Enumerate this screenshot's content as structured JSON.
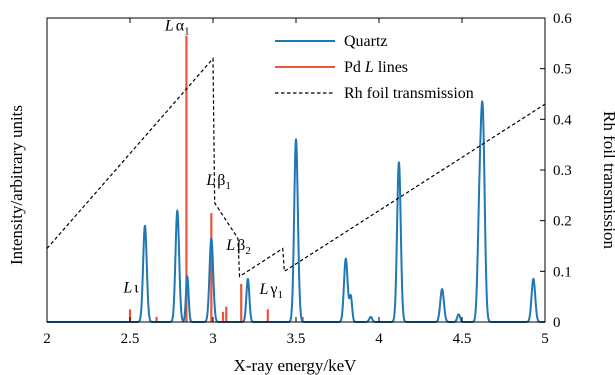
{
  "chart_data": {
    "type": "line",
    "xlabel": "X-ray energy/keV",
    "ylabel_left": "Intensity/arbitrary units",
    "ylabel_right": "Rh foil transmission",
    "xlim": [
      2,
      5
    ],
    "ylim_right": [
      0,
      0.6
    ],
    "x_ticks": [
      "2",
      "2.5",
      "3",
      "3.5",
      "4",
      "4.5",
      "5"
    ],
    "y_right_ticks": [
      "0",
      "0.1",
      "0.2",
      "0.3",
      "0.4",
      "0.5",
      "0.6"
    ],
    "legend": {
      "placement": "top-center",
      "entries": [
        "Quartz",
        "Pd L lines",
        "Rh foil transmission"
      ]
    },
    "colors": {
      "quartz": "#1f77b4",
      "pd": "#e8553a",
      "rh": "#000000"
    },
    "series": [
      {
        "name": "Quartz",
        "kind": "peaks",
        "units": "transmission-scale",
        "peaks": [
          {
            "x": 2.59,
            "h": 0.19,
            "w": 0.011
          },
          {
            "x": 2.785,
            "h": 0.22,
            "w": 0.011
          },
          {
            "x": 2.845,
            "h": 0.09,
            "w": 0.008
          },
          {
            "x": 2.99,
            "h": 0.165,
            "w": 0.011
          },
          {
            "x": 3.21,
            "h": 0.085,
            "w": 0.009
          },
          {
            "x": 3.5,
            "h": 0.36,
            "w": 0.011
          },
          {
            "x": 3.52,
            "h": 0.01,
            "w": 0.008
          },
          {
            "x": 3.8,
            "h": 0.125,
            "w": 0.011
          },
          {
            "x": 3.83,
            "h": 0.05,
            "w": 0.008
          },
          {
            "x": 3.95,
            "h": 0.01,
            "w": 0.009
          },
          {
            "x": 4.12,
            "h": 0.315,
            "w": 0.011
          },
          {
            "x": 4.38,
            "h": 0.065,
            "w": 0.011
          },
          {
            "x": 4.48,
            "h": 0.015,
            "w": 0.009
          },
          {
            "x": 4.605,
            "h": 0.19,
            "w": 0.011
          },
          {
            "x": 4.625,
            "h": 0.39,
            "w": 0.012
          },
          {
            "x": 4.93,
            "h": 0.085,
            "w": 0.011
          }
        ]
      },
      {
        "name": "Pd L lines",
        "kind": "sticks",
        "units": "transmission-scale",
        "lines": [
          {
            "x": 2.5,
            "h": 0.025
          },
          {
            "x": 2.66,
            "h": 0.01
          },
          {
            "x": 2.84,
            "h": 0.565
          },
          {
            "x": 2.99,
            "h": 0.215
          },
          {
            "x": 3.06,
            "h": 0.02
          },
          {
            "x": 3.08,
            "h": 0.03
          },
          {
            "x": 3.17,
            "h": 0.075
          },
          {
            "x": 3.33,
            "h": 0.025
          },
          {
            "x": 3.54,
            "h": 0.01
          }
        ]
      },
      {
        "name": "Rh foil transmission",
        "kind": "line",
        "points": [
          [
            2.0,
            0.145
          ],
          [
            3.0,
            0.52
          ],
          [
            3.01,
            0.235
          ],
          [
            3.15,
            0.165
          ],
          [
            3.16,
            0.09
          ],
          [
            3.42,
            0.145
          ],
          [
            3.43,
            0.1
          ],
          [
            5.0,
            0.43
          ]
        ]
      }
    ],
    "annotations": [
      {
        "base": "L",
        "greek": "α",
        "sub": "1",
        "x": 2.71,
        "y": 0.575
      },
      {
        "base": "L",
        "greek": "β",
        "sub": "1",
        "x": 2.96,
        "y": 0.27
      },
      {
        "base": "L",
        "greek": "β",
        "sub": "2",
        "x": 3.08,
        "y": 0.142
      },
      {
        "base": "L",
        "greek": "γ",
        "sub": "1",
        "x": 3.28,
        "y": 0.055
      },
      {
        "base": "L",
        "greek": "ι",
        "sub": "",
        "x": 2.46,
        "y": 0.058
      }
    ]
  }
}
